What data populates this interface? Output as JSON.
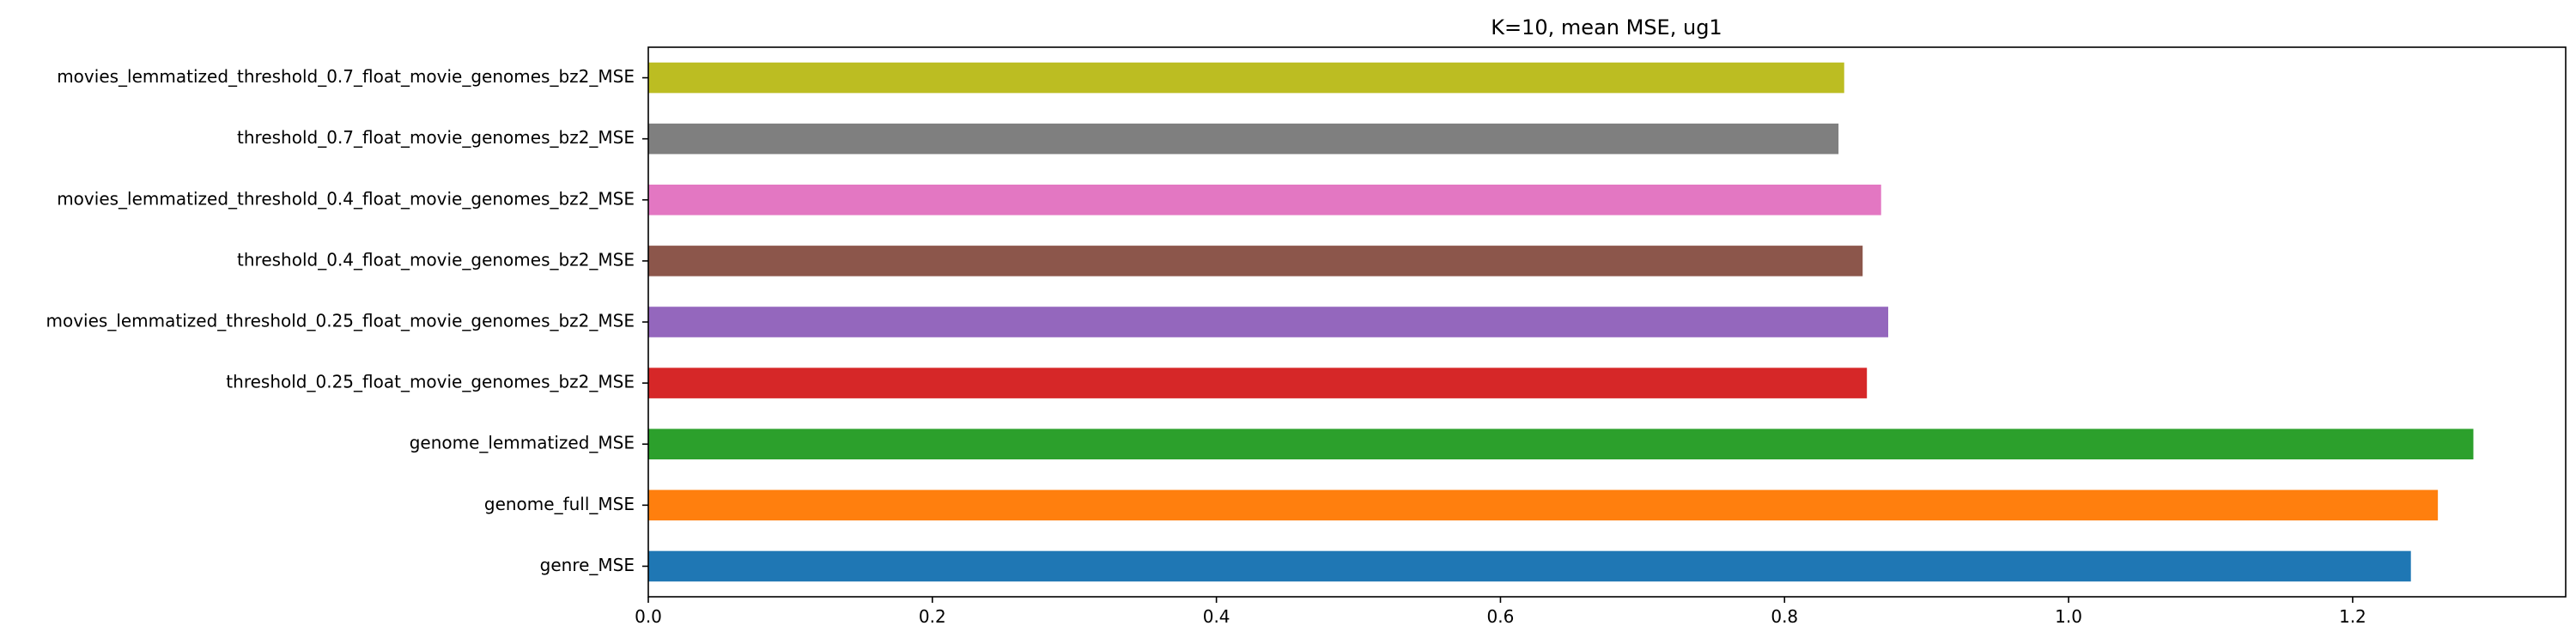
{
  "chart_data": {
    "type": "bar",
    "orientation": "horizontal",
    "title": "K=10, mean MSE, ug1",
    "xlabel": "",
    "ylabel": "",
    "xlim": [
      0,
      1.35
    ],
    "x_ticks": [
      0.0,
      0.2,
      0.4,
      0.6,
      0.8,
      1.0,
      1.2
    ],
    "x_tick_labels": [
      "0.0",
      "0.2",
      "0.4",
      "0.6",
      "0.8",
      "1.0",
      "1.2"
    ],
    "grid": false,
    "legend": "none",
    "categories": [
      "genre_MSE",
      "genome_full_MSE",
      "genome_lemmatized_MSE",
      "threshold_0.25_float_movie_genomes_bz2_MSE",
      "movies_lemmatized_threshold_0.25_float_movie_genomes_bz2_MSE",
      "threshold_0.4_float_movie_genomes_bz2_MSE",
      "movies_lemmatized_threshold_0.4_float_movie_genomes_bz2_MSE",
      "threshold_0.7_float_movie_genomes_bz2_MSE",
      "movies_lemmatized_threshold_0.7_float_movie_genomes_bz2_MSE"
    ],
    "values": [
      1.241,
      1.26,
      1.285,
      0.858,
      0.873,
      0.855,
      0.868,
      0.838,
      0.842
    ],
    "colors": [
      "#1f77b4",
      "#ff7f0e",
      "#2ca02c",
      "#d62728",
      "#9467bd",
      "#8c564b",
      "#e377c2",
      "#7f7f7f",
      "#bcbd22"
    ]
  }
}
